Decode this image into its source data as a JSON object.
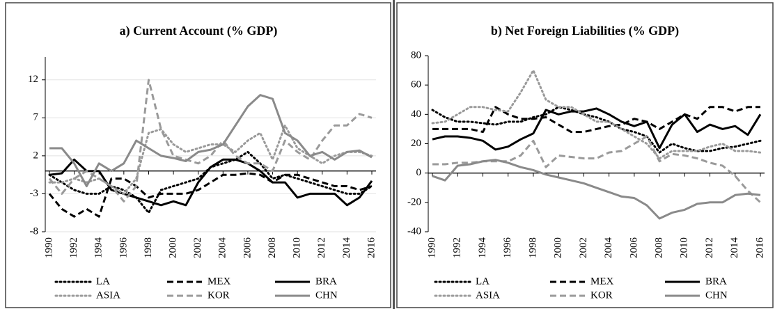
{
  "chart_data": [
    {
      "type": "line",
      "title": "a) Current Account  (% GDP)",
      "x": [
        1990,
        1991,
        1992,
        1993,
        1994,
        1995,
        1996,
        1997,
        1998,
        1999,
        2000,
        2001,
        2002,
        2003,
        2004,
        2005,
        2006,
        2007,
        2008,
        2009,
        2010,
        2011,
        2012,
        2013,
        2014,
        2015,
        2016
      ],
      "xlim": [
        1990,
        2016
      ],
      "xticks": [
        1990,
        1992,
        1994,
        1996,
        1998,
        2000,
        2002,
        2004,
        2006,
        2008,
        2010,
        2012,
        2014,
        2016
      ],
      "ylim": [
        -8,
        15
      ],
      "yticks": [
        -8,
        -3,
        2,
        7,
        12
      ],
      "grid": true,
      "series": [
        {
          "name": "LA",
          "color": "#000000",
          "dash": "dotted",
          "values": [
            -0.5,
            -1.5,
            -2.5,
            -3,
            -3,
            -2,
            -2.5,
            -3.5,
            -5.5,
            -2.5,
            -2,
            -1.5,
            -1,
            0.5,
            1,
            1.5,
            2.5,
            1,
            -1,
            -0.5,
            -1,
            -1.5,
            -2,
            -2.5,
            -3,
            -3,
            -2
          ]
        },
        {
          "name": "MEX",
          "color": "#000000",
          "dash": "dashed",
          "values": [
            -3,
            -5,
            -6,
            -5,
            -6,
            -1,
            -1,
            -2,
            -3.5,
            -3,
            -3,
            -3,
            -2.5,
            -1.5,
            -0.5,
            -0.5,
            -0.3,
            -0.5,
            -1.5,
            -0.5,
            -0.5,
            -1,
            -1.5,
            -2,
            -2,
            -2.5,
            -2
          ]
        },
        {
          "name": "BRA",
          "color": "#000000",
          "dash": "solid",
          "values": [
            -0.5,
            -0.3,
            1.5,
            0,
            0,
            -2.5,
            -3,
            -3.5,
            -4,
            -4.5,
            -4,
            -4.5,
            -1.5,
            0.5,
            1.5,
            1.5,
            1,
            0,
            -1.5,
            -1.5,
            -3.5,
            -3,
            -3,
            -3,
            -4.5,
            -3.5,
            -1.3
          ]
        },
        {
          "name": "ASIA",
          "color": "#9a9a9a",
          "dash": "dotted",
          "values": [
            -1.5,
            -1.5,
            -1,
            -1.5,
            -1,
            -2,
            -3,
            -1,
            5,
            5.5,
            3.5,
            2.5,
            3,
            3.5,
            3.5,
            2.5,
            4,
            5,
            1.5,
            6,
            3,
            2,
            1,
            2,
            2.5,
            2.5,
            2
          ]
        },
        {
          "name": "KOR",
          "color": "#9a9a9a",
          "dash": "dashed",
          "values": [
            -1,
            -3,
            -1,
            0,
            -1,
            -2,
            -4,
            -2,
            12,
            5.5,
            2,
            1.5,
            1,
            2,
            4,
            2,
            1,
            1,
            0,
            4,
            2.5,
            1.5,
            4,
            6,
            6,
            7.5,
            7
          ]
        },
        {
          "name": "CHN",
          "color": "#8a8a8a",
          "dash": "solid",
          "values": [
            3,
            3,
            1,
            -2,
            1,
            0,
            1,
            4,
            3,
            2,
            1.7,
            1.3,
            2.5,
            2.8,
            3.5,
            6,
            8.5,
            10,
            9.5,
            5,
            4,
            2,
            2.5,
            1.5,
            2.5,
            2.7,
            1.8
          ]
        }
      ]
    },
    {
      "type": "line",
      "title": "b)  Net Foreign Liabilities (% GDP)",
      "x": [
        1990,
        1991,
        1992,
        1993,
        1994,
        1995,
        1996,
        1997,
        1998,
        1999,
        2000,
        2001,
        2002,
        2003,
        2004,
        2005,
        2006,
        2007,
        2008,
        2009,
        2010,
        2011,
        2012,
        2013,
        2014,
        2015,
        2016
      ],
      "xlim": [
        1990,
        2016
      ],
      "xticks": [
        1990,
        1992,
        1994,
        1996,
        1998,
        2000,
        2002,
        2004,
        2006,
        2008,
        2010,
        2012,
        2014,
        2016
      ],
      "ylim": [
        -40,
        80
      ],
      "yticks": [
        -40,
        -20,
        0,
        20,
        40,
        60,
        80
      ],
      "grid": false,
      "series": [
        {
          "name": "LA",
          "color": "#000000",
          "dash": "dotted",
          "values": [
            43,
            38,
            35,
            35,
            34,
            33,
            35,
            35,
            38,
            40,
            45,
            43,
            40,
            38,
            35,
            30,
            28,
            25,
            14,
            20,
            17,
            15,
            15,
            17,
            18,
            20,
            22
          ]
        },
        {
          "name": "MEX",
          "color": "#000000",
          "dash": "dashed",
          "values": [
            30,
            30,
            30,
            30,
            28,
            45,
            40,
            37,
            37,
            38,
            33,
            28,
            28,
            30,
            32,
            33,
            37,
            35,
            30,
            35,
            40,
            37,
            45,
            45,
            42,
            45,
            45
          ]
        },
        {
          "name": "BRA",
          "color": "#000000",
          "dash": "solid",
          "values": [
            23,
            25,
            25,
            24,
            22,
            16,
            18,
            23,
            27,
            43,
            40,
            42,
            42,
            44,
            40,
            35,
            32,
            35,
            17,
            33,
            40,
            28,
            33,
            30,
            32,
            26,
            40
          ]
        },
        {
          "name": "ASIA",
          "color": "#9a9a9a",
          "dash": "dotted",
          "values": [
            34,
            35,
            40,
            45,
            45,
            43,
            42,
            55,
            70,
            50,
            45,
            45,
            40,
            35,
            35,
            30,
            25,
            20,
            10,
            15,
            15,
            15,
            18,
            20,
            15,
            15,
            14
          ]
        },
        {
          "name": "KOR",
          "color": "#9a9a9a",
          "dash": "dashed",
          "values": [
            6,
            6,
            7,
            7,
            8,
            8,
            8,
            12,
            22,
            4,
            12,
            11,
            10,
            10,
            14,
            15,
            20,
            25,
            8,
            13,
            12,
            10,
            7,
            5,
            -2,
            -12,
            -20
          ]
        },
        {
          "name": "CHN",
          "color": "#8a8a8a",
          "dash": "solid",
          "values": [
            -2,
            -5,
            5,
            6,
            8,
            9,
            7,
            4,
            2,
            -1,
            -3,
            -5,
            -7,
            -10,
            -13,
            -16,
            -17,
            -22,
            -31,
            -27,
            -25,
            -21,
            -20,
            -20,
            -15,
            -14,
            -15
          ]
        }
      ]
    }
  ]
}
